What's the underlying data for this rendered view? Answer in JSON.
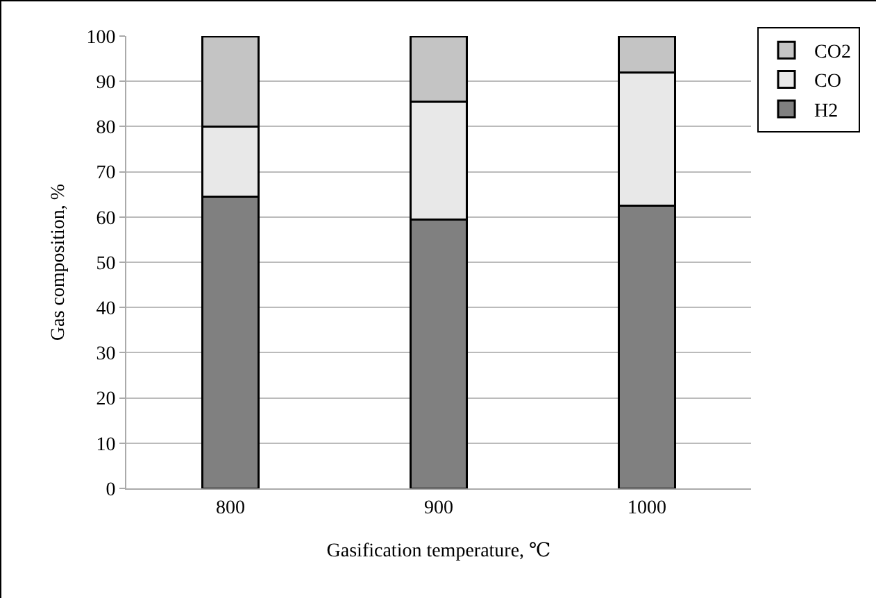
{
  "chart_data": {
    "type": "bar",
    "stacked": true,
    "categories": [
      "800",
      "900",
      "1000"
    ],
    "series": [
      {
        "name": "H2",
        "color": "#808080",
        "values": [
          64.5,
          59.5,
          62.5
        ]
      },
      {
        "name": "CO",
        "color": "#e8e8e8",
        "values": [
          15.5,
          26,
          29.5
        ]
      },
      {
        "name": "CO2",
        "color": "#c4c4c4",
        "values": [
          20,
          14.5,
          8
        ]
      }
    ],
    "xlabel": "Gasification temperature, ℃",
    "ylabel": "Gas composition, %",
    "ylim": [
      0,
      100
    ],
    "yticks": [
      0,
      10,
      20,
      30,
      40,
      50,
      60,
      70,
      80,
      90,
      100
    ],
    "grid": "y",
    "legend": "top right"
  }
}
